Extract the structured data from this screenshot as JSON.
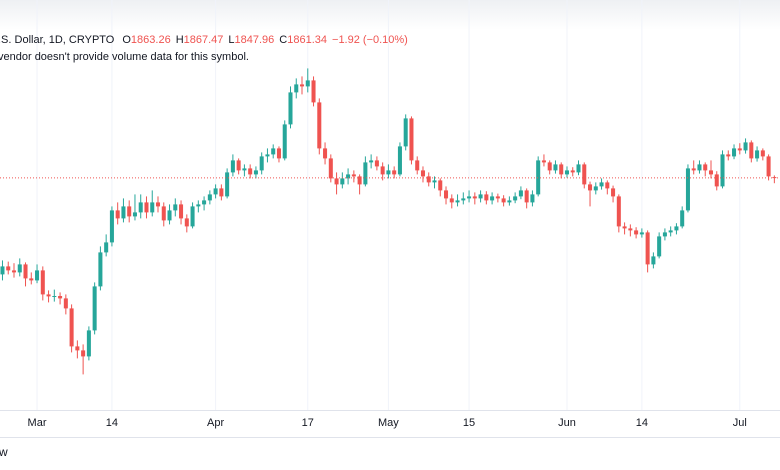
{
  "chart_data": {
    "type": "candlestick",
    "symbol": ".S. Dollar, 1D, CRYPTO",
    "ohlc_prefixes": [
      "O",
      "H",
      "L",
      "C"
    ],
    "change": "−1.92 (−0.10%)",
    "note": "vendor doesn't provide volume data for this symbol.",
    "footer": "w",
    "up_color": "#26a69a",
    "down_color": "#ef5350",
    "last_price_line": true,
    "grid": true,
    "xlim": [
      -0.43,
      134.98
    ],
    "ylim": [
      1281,
      2306
    ],
    "xticks": [
      {
        "value": 6,
        "label": "Mar"
      },
      {
        "value": 19,
        "label": "14"
      },
      {
        "value": 37,
        "label": "Apr"
      },
      {
        "value": 53,
        "label": "17"
      },
      {
        "value": 67,
        "label": "May"
      },
      {
        "value": 81,
        "label": "15"
      },
      {
        "value": 98,
        "label": "Jun"
      },
      {
        "value": 111,
        "label": "14"
      },
      {
        "value": 128,
        "label": "Jul"
      }
    ],
    "ohlc": [
      [
        1620,
        1655,
        1605,
        1640
      ],
      [
        1640,
        1652,
        1620,
        1630
      ],
      [
        1630,
        1648,
        1612,
        1625
      ],
      [
        1625,
        1660,
        1615,
        1645
      ],
      [
        1645,
        1650,
        1590,
        1610
      ],
      [
        1610,
        1625,
        1595,
        1605
      ],
      [
        1605,
        1645,
        1598,
        1630
      ],
      [
        1630,
        1640,
        1555,
        1570
      ],
      [
        1570,
        1580,
        1550,
        1565
      ],
      [
        1565,
        1582,
        1552,
        1566
      ],
      [
        1566,
        1575,
        1545,
        1560
      ],
      [
        1560,
        1570,
        1520,
        1535
      ],
      [
        1535,
        1545,
        1425,
        1440
      ],
      [
        1440,
        1455,
        1410,
        1430
      ],
      [
        1430,
        1445,
        1370,
        1415
      ],
      [
        1415,
        1490,
        1405,
        1480
      ],
      [
        1480,
        1600,
        1470,
        1590
      ],
      [
        1590,
        1690,
        1580,
        1675
      ],
      [
        1675,
        1720,
        1665,
        1700
      ],
      [
        1700,
        1790,
        1690,
        1780
      ],
      [
        1780,
        1800,
        1745,
        1760
      ],
      [
        1760,
        1810,
        1750,
        1790
      ],
      [
        1790,
        1805,
        1750,
        1765
      ],
      [
        1765,
        1820,
        1755,
        1775
      ],
      [
        1775,
        1820,
        1760,
        1800
      ],
      [
        1800,
        1815,
        1760,
        1775
      ],
      [
        1775,
        1830,
        1765,
        1800
      ],
      [
        1800,
        1815,
        1775,
        1790
      ],
      [
        1790,
        1800,
        1740,
        1755
      ],
      [
        1755,
        1795,
        1745,
        1780
      ],
      [
        1780,
        1810,
        1765,
        1795
      ],
      [
        1795,
        1805,
        1745,
        1760
      ],
      [
        1760,
        1770,
        1725,
        1740
      ],
      [
        1740,
        1800,
        1735,
        1790
      ],
      [
        1790,
        1805,
        1775,
        1795
      ],
      [
        1795,
        1815,
        1780,
        1805
      ],
      [
        1805,
        1830,
        1795,
        1820
      ],
      [
        1820,
        1845,
        1810,
        1835
      ],
      [
        1835,
        1845,
        1805,
        1815
      ],
      [
        1815,
        1885,
        1810,
        1875
      ],
      [
        1875,
        1920,
        1865,
        1905
      ],
      [
        1905,
        1910,
        1870,
        1880
      ],
      [
        1880,
        1895,
        1865,
        1885
      ],
      [
        1885,
        1895,
        1860,
        1870
      ],
      [
        1870,
        1890,
        1860,
        1880
      ],
      [
        1880,
        1925,
        1870,
        1915
      ],
      [
        1915,
        1935,
        1900,
        1920
      ],
      [
        1920,
        1945,
        1910,
        1935
      ],
      [
        1935,
        1940,
        1900,
        1910
      ],
      [
        1910,
        2005,
        1905,
        1995
      ],
      [
        1995,
        2090,
        1985,
        2075
      ],
      [
        2075,
        2110,
        2060,
        2095
      ],
      [
        2095,
        2115,
        2070,
        2090
      ],
      [
        2090,
        2135,
        2075,
        2105
      ],
      [
        2105,
        2115,
        2040,
        2050
      ],
      [
        2050,
        2060,
        1920,
        1935
      ],
      [
        1935,
        1950,
        1895,
        1910
      ],
      [
        1910,
        1920,
        1850,
        1860
      ],
      [
        1860,
        1875,
        1820,
        1845
      ],
      [
        1845,
        1875,
        1835,
        1860
      ],
      [
        1860,
        1885,
        1845,
        1870
      ],
      [
        1870,
        1880,
        1850,
        1865
      ],
      [
        1865,
        1870,
        1820,
        1845
      ],
      [
        1845,
        1915,
        1840,
        1900
      ],
      [
        1900,
        1920,
        1885,
        1905
      ],
      [
        1905,
        1915,
        1880,
        1890
      ],
      [
        1890,
        1900,
        1855,
        1870
      ],
      [
        1870,
        1895,
        1860,
        1880
      ],
      [
        1880,
        1890,
        1860,
        1870
      ],
      [
        1870,
        1950,
        1865,
        1940
      ],
      [
        1940,
        2020,
        1930,
        2010
      ],
      [
        2010,
        2015,
        1895,
        1905
      ],
      [
        1905,
        1915,
        1870,
        1880
      ],
      [
        1880,
        1890,
        1850,
        1865
      ],
      [
        1865,
        1875,
        1840,
        1850
      ],
      [
        1850,
        1865,
        1835,
        1855
      ],
      [
        1855,
        1860,
        1815,
        1830
      ],
      [
        1830,
        1840,
        1795,
        1810
      ],
      [
        1810,
        1820,
        1785,
        1800
      ],
      [
        1800,
        1820,
        1790,
        1805
      ],
      [
        1805,
        1825,
        1795,
        1810
      ],
      [
        1810,
        1830,
        1800,
        1815
      ],
      [
        1815,
        1825,
        1795,
        1810
      ],
      [
        1810,
        1830,
        1800,
        1820
      ],
      [
        1820,
        1828,
        1795,
        1805
      ],
      [
        1805,
        1825,
        1795,
        1815
      ],
      [
        1815,
        1822,
        1800,
        1810
      ],
      [
        1810,
        1818,
        1790,
        1800
      ],
      [
        1800,
        1815,
        1792,
        1805
      ],
      [
        1805,
        1825,
        1798,
        1815
      ],
      [
        1815,
        1840,
        1808,
        1830
      ],
      [
        1830,
        1835,
        1785,
        1800
      ],
      [
        1800,
        1830,
        1790,
        1820
      ],
      [
        1820,
        1915,
        1815,
        1905
      ],
      [
        1905,
        1920,
        1890,
        1900
      ],
      [
        1900,
        1905,
        1870,
        1880
      ],
      [
        1880,
        1905,
        1872,
        1895
      ],
      [
        1895,
        1900,
        1860,
        1870
      ],
      [
        1870,
        1890,
        1862,
        1880
      ],
      [
        1880,
        1888,
        1865,
        1875
      ],
      [
        1875,
        1905,
        1868,
        1895
      ],
      [
        1895,
        1900,
        1835,
        1845
      ],
      [
        1845,
        1852,
        1790,
        1830
      ],
      [
        1830,
        1850,
        1820,
        1840
      ],
      [
        1840,
        1860,
        1832,
        1850
      ],
      [
        1850,
        1855,
        1820,
        1835
      ],
      [
        1835,
        1842,
        1800,
        1815
      ],
      [
        1815,
        1820,
        1725,
        1740
      ],
      [
        1740,
        1750,
        1720,
        1735
      ],
      [
        1735,
        1745,
        1715,
        1730
      ],
      [
        1730,
        1738,
        1710,
        1720
      ],
      [
        1720,
        1735,
        1712,
        1725
      ],
      [
        1725,
        1730,
        1625,
        1645
      ],
      [
        1645,
        1675,
        1635,
        1665
      ],
      [
        1665,
        1725,
        1660,
        1715
      ],
      [
        1715,
        1735,
        1705,
        1725
      ],
      [
        1725,
        1740,
        1715,
        1730
      ],
      [
        1730,
        1748,
        1720,
        1740
      ],
      [
        1740,
        1790,
        1735,
        1780
      ],
      [
        1780,
        1895,
        1775,
        1885
      ],
      [
        1885,
        1905,
        1870,
        1880
      ],
      [
        1880,
        1905,
        1872,
        1895
      ],
      [
        1895,
        1900,
        1865,
        1880
      ],
      [
        1880,
        1905,
        1860,
        1870
      ],
      [
        1870,
        1878,
        1830,
        1840
      ],
      [
        1840,
        1930,
        1835,
        1920
      ],
      [
        1920,
        1930,
        1905,
        1915
      ],
      [
        1915,
        1945,
        1908,
        1935
      ],
      [
        1935,
        1948,
        1920,
        1930
      ],
      [
        1930,
        1960,
        1922,
        1950
      ],
      [
        1950,
        1955,
        1900,
        1910
      ],
      [
        1910,
        1940,
        1902,
        1930
      ],
      [
        1930,
        1935,
        1905,
        1915
      ],
      [
        1915,
        1920,
        1855,
        1865
      ],
      [
        1863.26,
        1867.47,
        1847.96,
        1861.34
      ]
    ]
  }
}
